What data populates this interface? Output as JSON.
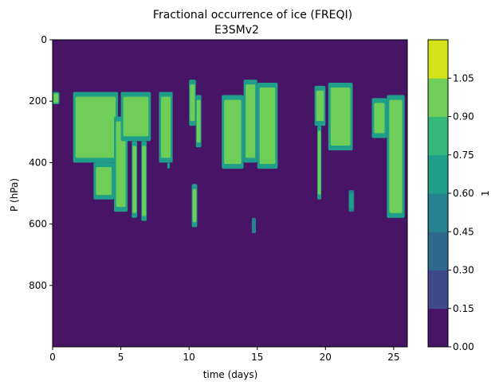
{
  "chart_data": {
    "type": "heatmap",
    "title": "Fractional occurrence of ice (FREQI)",
    "subtitle": "E3SMv2",
    "xlabel": "time (days)",
    "ylabel": "P (hPa)",
    "xlim": [
      0,
      26
    ],
    "ylim": [
      1000,
      0
    ],
    "y_inverted": true,
    "xticks": [
      0,
      5,
      10,
      15,
      20,
      25
    ],
    "xtick_labels": [
      "0",
      "5",
      "10",
      "15",
      "20",
      "25"
    ],
    "yticks": [
      0,
      200,
      400,
      600,
      800
    ],
    "ytick_labels": [
      "0",
      "200",
      "400",
      "600",
      "800"
    ],
    "colorbar": {
      "label": "1",
      "levels": [
        0.0,
        0.15,
        0.3,
        0.45,
        0.6,
        0.75,
        0.9,
        1.05
      ],
      "tick_labels": [
        "0.00",
        "0.15",
        "0.30",
        "0.45",
        "0.60",
        "0.75",
        "0.90",
        "1.05"
      ],
      "colors": [
        "#471466",
        "#3e4a89",
        "#31688e",
        "#26828e",
        "#1f9e89",
        "#35b779",
        "#6ece58",
        "#d4e21a"
      ]
    },
    "background_value": 0.0,
    "regions": [
      {
        "name": "ice-region-1",
        "x": [
          1.5,
          4.8
        ],
        "p": [
          170,
          400
        ],
        "value": 1.0
      },
      {
        "name": "ice-region-2",
        "x": [
          3.0,
          4.5
        ],
        "p": [
          400,
          520
        ],
        "value": 0.9
      },
      {
        "name": "ice-region-3",
        "x": [
          4.5,
          5.5
        ],
        "p": [
          250,
          560
        ],
        "value": 1.0
      },
      {
        "name": "ice-region-4",
        "x": [
          5.0,
          7.2
        ],
        "p": [
          170,
          330
        ],
        "value": 1.0
      },
      {
        "name": "ice-region-5",
        "x": [
          5.8,
          6.2
        ],
        "p": [
          330,
          580
        ],
        "value": 0.9
      },
      {
        "name": "ice-region-6",
        "x": [
          6.5,
          6.9
        ],
        "p": [
          330,
          590
        ],
        "value": 1.0
      },
      {
        "name": "ice-region-7",
        "x": [
          7.8,
          8.8
        ],
        "p": [
          170,
          400
        ],
        "value": 1.0
      },
      {
        "name": "ice-region-8",
        "x": [
          8.4,
          8.6
        ],
        "p": [
          400,
          420
        ],
        "value": 0.6
      },
      {
        "name": "ice-region-9",
        "x": [
          10.0,
          10.5
        ],
        "p": [
          130,
          280
        ],
        "value": 1.0
      },
      {
        "name": "ice-region-10",
        "x": [
          10.5,
          10.9
        ],
        "p": [
          180,
          350
        ],
        "value": 0.9
      },
      {
        "name": "ice-region-11",
        "x": [
          10.2,
          10.6
        ],
        "p": [
          470,
          610
        ],
        "value": 1.0
      },
      {
        "name": "ice-region-12",
        "x": [
          12.4,
          14.0
        ],
        "p": [
          180,
          420
        ],
        "value": 1.0
      },
      {
        "name": "ice-region-13",
        "x": [
          14.0,
          15.0
        ],
        "p": [
          130,
          400
        ],
        "value": 1.0
      },
      {
        "name": "ice-region-14",
        "x": [
          15.0,
          16.5
        ],
        "p": [
          140,
          420
        ],
        "value": 1.0
      },
      {
        "name": "ice-region-15",
        "x": [
          14.6,
          14.9
        ],
        "p": [
          580,
          630
        ],
        "value": 0.45
      },
      {
        "name": "ice-region-16",
        "x": [
          19.2,
          20.0
        ],
        "p": [
          150,
          280
        ],
        "value": 1.0
      },
      {
        "name": "ice-region-17",
        "x": [
          19.4,
          19.7
        ],
        "p": [
          280,
          520
        ],
        "value": 1.0
      },
      {
        "name": "ice-region-18",
        "x": [
          20.2,
          22.0
        ],
        "p": [
          140,
          360
        ],
        "value": 1.0
      },
      {
        "name": "ice-region-19",
        "x": [
          21.7,
          22.1
        ],
        "p": [
          490,
          560
        ],
        "value": 0.6
      },
      {
        "name": "ice-region-20",
        "x": [
          23.4,
          24.5
        ],
        "p": [
          190,
          320
        ],
        "value": 1.0
      },
      {
        "name": "ice-region-21",
        "x": [
          24.5,
          25.8
        ],
        "p": [
          180,
          580
        ],
        "value": 1.0
      },
      {
        "name": "ice-region-22",
        "x": [
          0.0,
          0.5
        ],
        "p": [
          170,
          210
        ],
        "value": 0.9
      }
    ]
  }
}
